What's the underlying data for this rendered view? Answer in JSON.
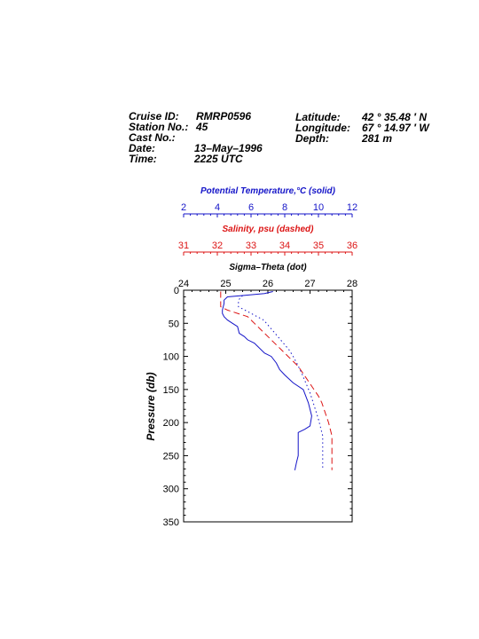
{
  "header": {
    "left": [
      {
        "label": "Cruise ID:",
        "value": "RMRP0596"
      },
      {
        "label": "Station No.:",
        "value": "45"
      },
      {
        "label": "Cast No.:",
        "value": ""
      },
      {
        "label": "Date:",
        "value": "13–May–1996"
      },
      {
        "label": "Time:",
        "value": "2225 UTC"
      }
    ],
    "right": [
      {
        "label": "Latitude:",
        "value": "42 °  35.48 ′  N"
      },
      {
        "label": "Longitude:",
        "value": "67 °  14.97 ′  W"
      },
      {
        "label": "Depth:",
        "value": "281 m"
      }
    ]
  },
  "colors": {
    "temperature": "#1414c8",
    "salinity": "#dc1414",
    "sigma": "#000000",
    "density_dot": "#1414c8"
  },
  "chart_data": {
    "type": "line",
    "y_axis": {
      "label": "Pressure (db)",
      "range": [
        0,
        350
      ],
      "ticks": [
        "0",
        "50",
        "100",
        "150",
        "200",
        "250",
        "300",
        "350"
      ],
      "inverted": true
    },
    "x_axes": [
      {
        "id": "temperature",
        "title": "Potential Temperature,°C (solid)",
        "range": [
          2,
          12
        ],
        "ticks": [
          "2",
          "4",
          "6",
          "8",
          "10",
          "12"
        ],
        "color": "#1414c8"
      },
      {
        "id": "salinity",
        "title": "Salinity, psu  (dashed)",
        "range": [
          31,
          36
        ],
        "ticks": [
          "31",
          "32",
          "33",
          "34",
          "35",
          "36"
        ],
        "color": "#dc1414"
      },
      {
        "id": "sigma",
        "title": "Sigma–Theta (dot)",
        "range": [
          24,
          28
        ],
        "ticks": [
          "24",
          "25",
          "26",
          "27",
          "28"
        ],
        "color": "#000000"
      }
    ],
    "series": [
      {
        "axis": "temperature",
        "style": "solid",
        "points": [
          [
            7.3,
            2
          ],
          [
            6.8,
            5
          ],
          [
            5.5,
            8
          ],
          [
            4.6,
            10
          ],
          [
            4.4,
            15
          ],
          [
            4.4,
            20
          ],
          [
            4.3,
            30
          ],
          [
            4.3,
            35
          ],
          [
            4.4,
            40
          ],
          [
            4.6,
            45
          ],
          [
            4.9,
            50
          ],
          [
            5.2,
            55
          ],
          [
            5.3,
            65
          ],
          [
            5.6,
            70
          ],
          [
            5.8,
            75
          ],
          [
            6.2,
            80
          ],
          [
            6.4,
            85
          ],
          [
            6.8,
            95
          ],
          [
            7.2,
            100
          ],
          [
            7.5,
            110
          ],
          [
            7.7,
            120
          ],
          [
            8.0,
            128
          ],
          [
            8.5,
            140
          ],
          [
            9.1,
            150
          ],
          [
            9.4,
            170
          ],
          [
            9.6,
            190
          ],
          [
            9.5,
            205
          ],
          [
            9.2,
            210
          ],
          [
            8.8,
            215
          ],
          [
            8.8,
            240
          ],
          [
            8.8,
            250
          ],
          [
            8.7,
            260
          ],
          [
            8.6,
            272
          ]
        ]
      },
      {
        "axis": "salinity",
        "style": "dashed",
        "points": [
          [
            32.1,
            2
          ],
          [
            32.1,
            8
          ],
          [
            32.1,
            12
          ],
          [
            32.1,
            20
          ],
          [
            32.1,
            25
          ],
          [
            32.3,
            30
          ],
          [
            32.6,
            35
          ],
          [
            32.9,
            40
          ],
          [
            33.0,
            45
          ],
          [
            33.1,
            50
          ],
          [
            33.2,
            55
          ],
          [
            33.4,
            65
          ],
          [
            33.7,
            80
          ],
          [
            33.9,
            90
          ],
          [
            34.1,
            100
          ],
          [
            34.4,
            115
          ],
          [
            34.6,
            130
          ],
          [
            34.8,
            145
          ],
          [
            35.0,
            160
          ],
          [
            35.1,
            170
          ],
          [
            35.2,
            185
          ],
          [
            35.3,
            200
          ],
          [
            35.4,
            220
          ],
          [
            35.4,
            240
          ],
          [
            35.4,
            260
          ],
          [
            35.4,
            272
          ]
        ]
      },
      {
        "axis": "sigma",
        "style": "dotted",
        "points": [
          [
            25.4,
            8
          ],
          [
            25.3,
            15
          ],
          [
            25.3,
            25
          ],
          [
            25.6,
            35
          ],
          [
            25.9,
            45
          ],
          [
            26.1,
            60
          ],
          [
            26.3,
            75
          ],
          [
            26.5,
            90
          ],
          [
            26.6,
            100
          ],
          [
            26.7,
            112
          ],
          [
            26.8,
            125
          ],
          [
            26.9,
            140
          ],
          [
            27.0,
            155
          ],
          [
            27.1,
            175
          ],
          [
            27.2,
            195
          ],
          [
            27.3,
            220
          ],
          [
            27.3,
            245
          ],
          [
            27.3,
            272
          ]
        ]
      }
    ]
  }
}
